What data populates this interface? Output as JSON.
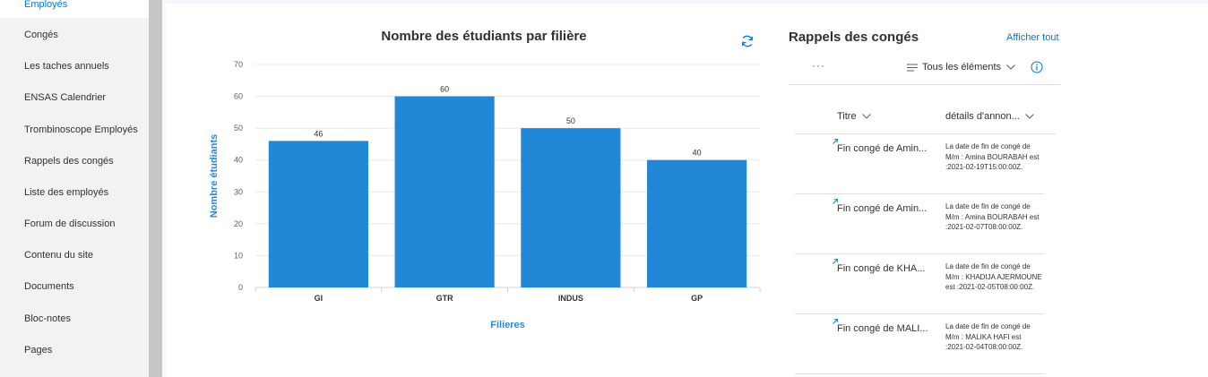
{
  "sidebar": {
    "items": [
      {
        "label": "Employés",
        "active": true
      },
      {
        "label": "Congés"
      },
      {
        "label": "Les taches annuels"
      },
      {
        "label": "ENSAS Calendrier"
      },
      {
        "label": "Trombinoscope Employés"
      },
      {
        "label": "Rappels des congés"
      },
      {
        "label": "Liste des employés"
      },
      {
        "label": "Forum de discussion"
      },
      {
        "label": "Contenu du site"
      },
      {
        "label": "Documents"
      },
      {
        "label": "Bloc-notes"
      },
      {
        "label": "Pages"
      }
    ]
  },
  "colors": {
    "bar": "#2188d8",
    "accent": "#0078d4",
    "axis_title": "#2b88d8"
  },
  "chart_data": {
    "type": "bar",
    "title": "Nombre des étudiants par filière",
    "xlabel": "Filieres",
    "ylabel": "Nombre étudiants",
    "categories": [
      "GI",
      "GTR",
      "INDUS",
      "GP"
    ],
    "values": [
      46,
      60,
      50,
      40
    ],
    "ylim": [
      0,
      70
    ],
    "yticks": [
      0,
      10,
      20,
      30,
      40,
      50,
      60,
      70
    ],
    "grid": true,
    "data_labels": true
  },
  "rappels": {
    "title": "Rappels des congés",
    "show_all": "Afficher tout",
    "more": "···",
    "view": "Tous les éléments",
    "columns": {
      "title": "Titre",
      "details": "détails d'annon..."
    },
    "rows": [
      {
        "title": "Fin congé de Amin...",
        "detail": "La date de fin de congé de M/m : Amina BOURABAH est :2021-02-19T15:00:00Z."
      },
      {
        "title": "Fin congé de Amin...",
        "detail": "La date de fin de congé de M/m : Amina BOURABAH est :2021-02-07T08:00:00Z."
      },
      {
        "title": "Fin congé de KHA...",
        "detail": "La date de fin de congé de M/m : KHADIJA AJERMOUNE est :2021-02-05T08:00:00Z."
      },
      {
        "title": "Fin congé de MALI...",
        "detail": "La date de fin de congé de M/m : MALIKA HAFI est :2021-02-04T08:00:00Z."
      }
    ]
  }
}
